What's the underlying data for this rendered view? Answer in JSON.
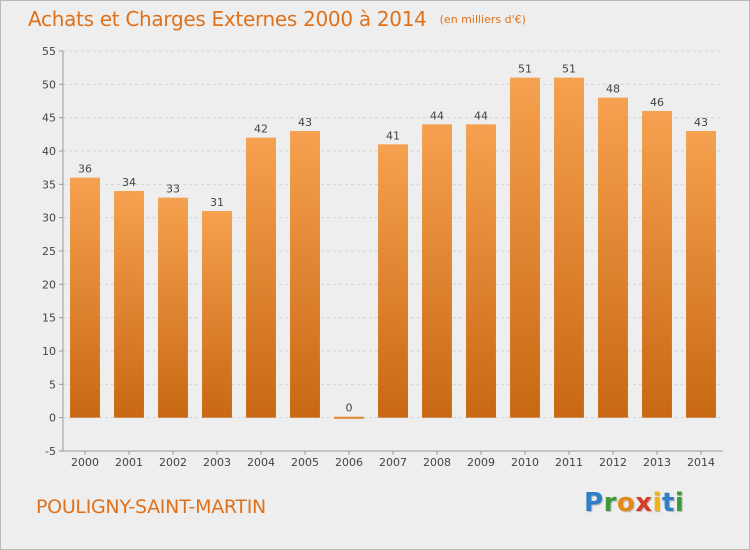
{
  "chart_data": {
    "type": "bar",
    "title": "Achats et Charges Externes 2000 à 2014",
    "unit": "(en milliers d'€)",
    "categories": [
      "2000",
      "2001",
      "2002",
      "2003",
      "2004",
      "2005",
      "2006",
      "2007",
      "2008",
      "2009",
      "2010",
      "2011",
      "2012",
      "2013",
      "2014"
    ],
    "values": [
      36,
      34,
      33,
      31,
      42,
      43,
      0,
      41,
      44,
      44,
      51,
      51,
      48,
      46,
      43
    ],
    "yticks": [
      -5,
      0,
      5,
      10,
      15,
      20,
      25,
      30,
      35,
      40,
      45,
      50,
      55
    ],
    "ylim": [
      -5,
      55
    ],
    "grid": true,
    "bar_color_top": "#f5a14f",
    "bar_color_bottom": "#c96812",
    "gridline_color": "#d4d4d4",
    "axis_color": "#999999"
  },
  "footer": {
    "commune": "POULIGNY-SAINT-MARTIN",
    "logo_parts": [
      "P",
      "r",
      "o",
      "x",
      "i",
      "t",
      "i"
    ]
  }
}
